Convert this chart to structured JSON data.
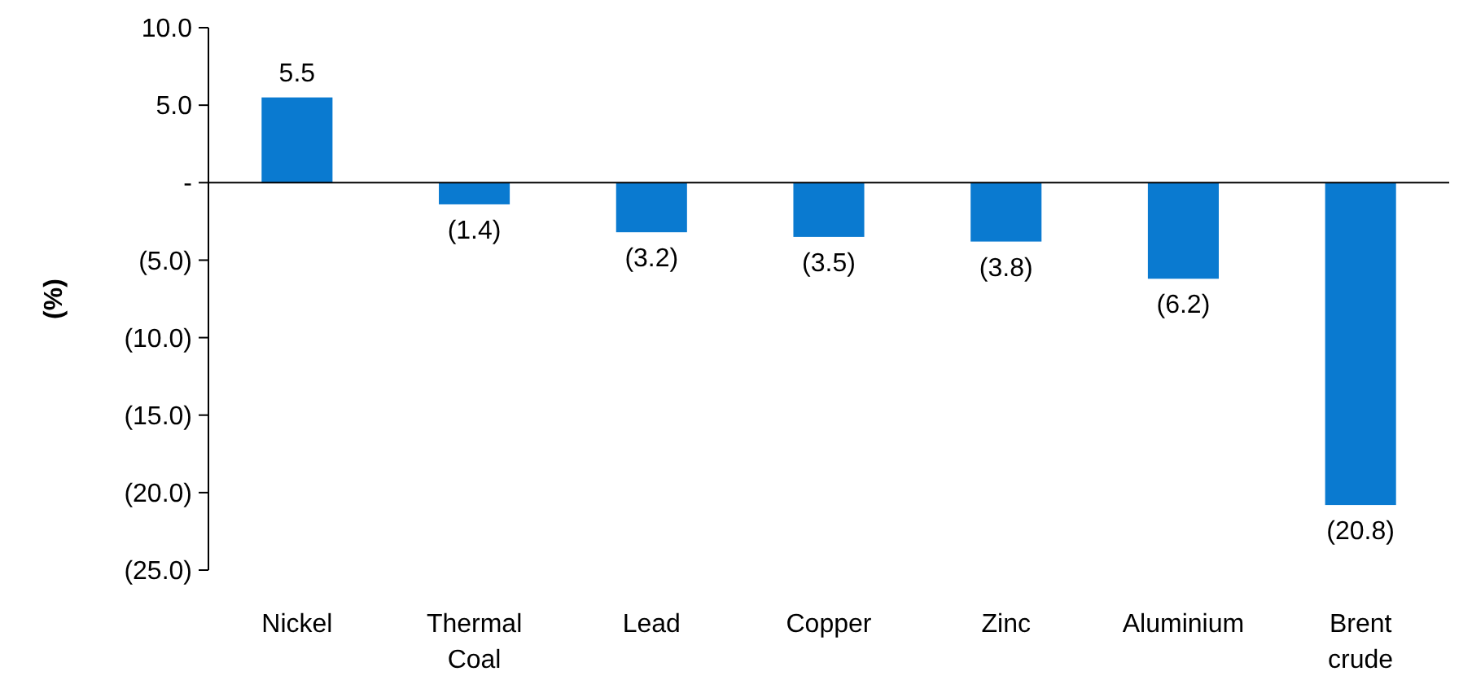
{
  "chart_data": {
    "type": "bar",
    "ylabel": "(%)",
    "categories": [
      "Nickel",
      "Thermal Coal",
      "Lead",
      "Copper",
      "Zinc",
      "Aluminium",
      "Brent crude"
    ],
    "values": [
      5.5,
      -1.4,
      -3.2,
      -3.5,
      -3.8,
      -6.2,
      -20.8
    ],
    "value_labels": [
      "5.5",
      "(1.4)",
      "(3.2)",
      "(3.5)",
      "(3.8)",
      "(6.2)",
      "(20.8)"
    ],
    "color": "#0a7ad0",
    "ylim": [
      -25,
      10
    ],
    "yticks": [
      {
        "value": 10,
        "label": "10.0"
      },
      {
        "value": 5,
        "label": "5.0"
      },
      {
        "value": 0,
        "label": "-"
      },
      {
        "value": -5,
        "label": "(5.0)"
      },
      {
        "value": -10,
        "label": "(10.0)"
      },
      {
        "value": -15,
        "label": "(15.0)"
      },
      {
        "value": -20,
        "label": "(20.0)"
      },
      {
        "value": -25,
        "label": "(25.0)"
      }
    ]
  }
}
